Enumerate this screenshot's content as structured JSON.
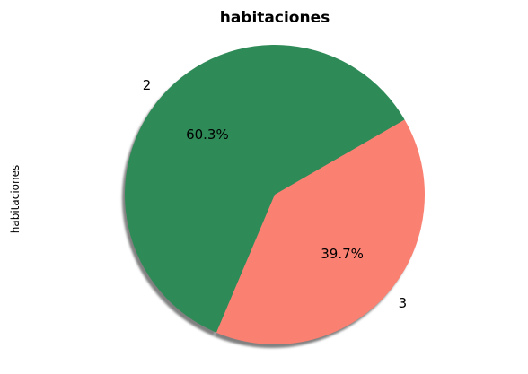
{
  "chart_data": {
    "type": "pie",
    "title": "habitaciones",
    "ylabel": "habitaciones",
    "labels": [
      "2",
      "3"
    ],
    "values": [
      60.3,
      39.7
    ],
    "percent_labels": [
      "60.3%",
      "39.7%"
    ],
    "colors": [
      "#2e8b57",
      "#fa8072"
    ],
    "start_angle_deg": 30,
    "shadow": true
  }
}
